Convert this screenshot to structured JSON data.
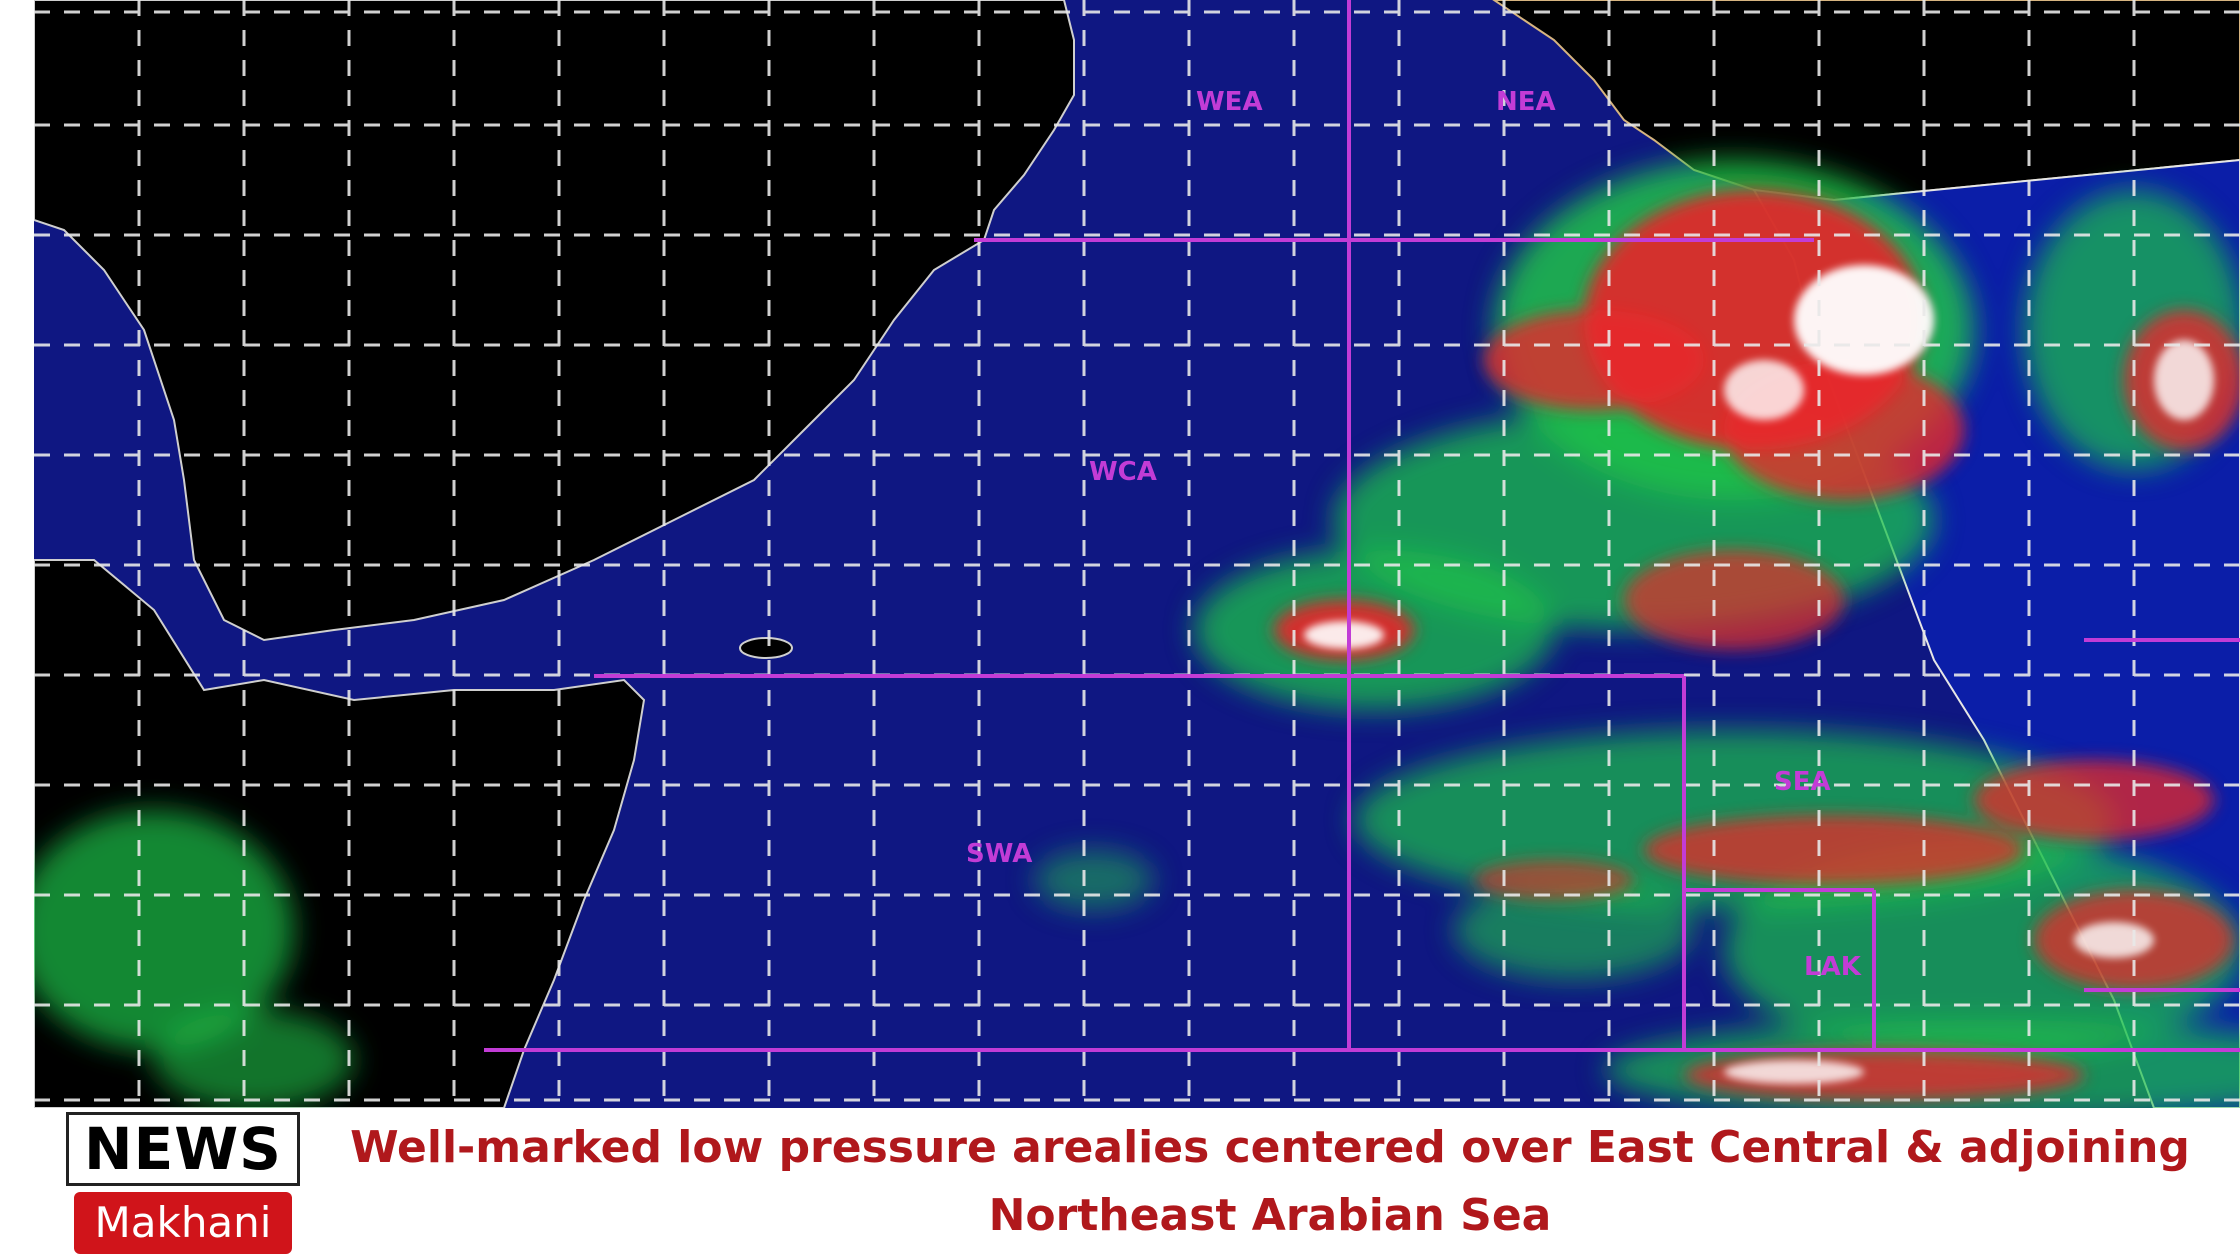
{
  "caption": "Well-marked low pressure arealies centered over East Central & adjoining Northeast Arabian Sea",
  "logo": {
    "top": "NEWS",
    "bottom": "Makhani"
  },
  "map": {
    "regions": [
      {
        "id": "wea",
        "label": "WEA"
      },
      {
        "id": "nea",
        "label": "NEA"
      },
      {
        "id": "wca",
        "label": "WCA"
      },
      {
        "id": "swa",
        "label": "SWA"
      },
      {
        "id": "sea",
        "label": "SEA"
      },
      {
        "id": "lak",
        "label": "LAK"
      }
    ],
    "colors": {
      "ocean": "#0a0d6e",
      "land": "#000000",
      "grid": "#e8e8e8",
      "region_lines": "#c23cd6",
      "cloud_green": "#1ec24a",
      "cloud_red": "#e8262a",
      "cloud_white": "#ffffff"
    }
  }
}
